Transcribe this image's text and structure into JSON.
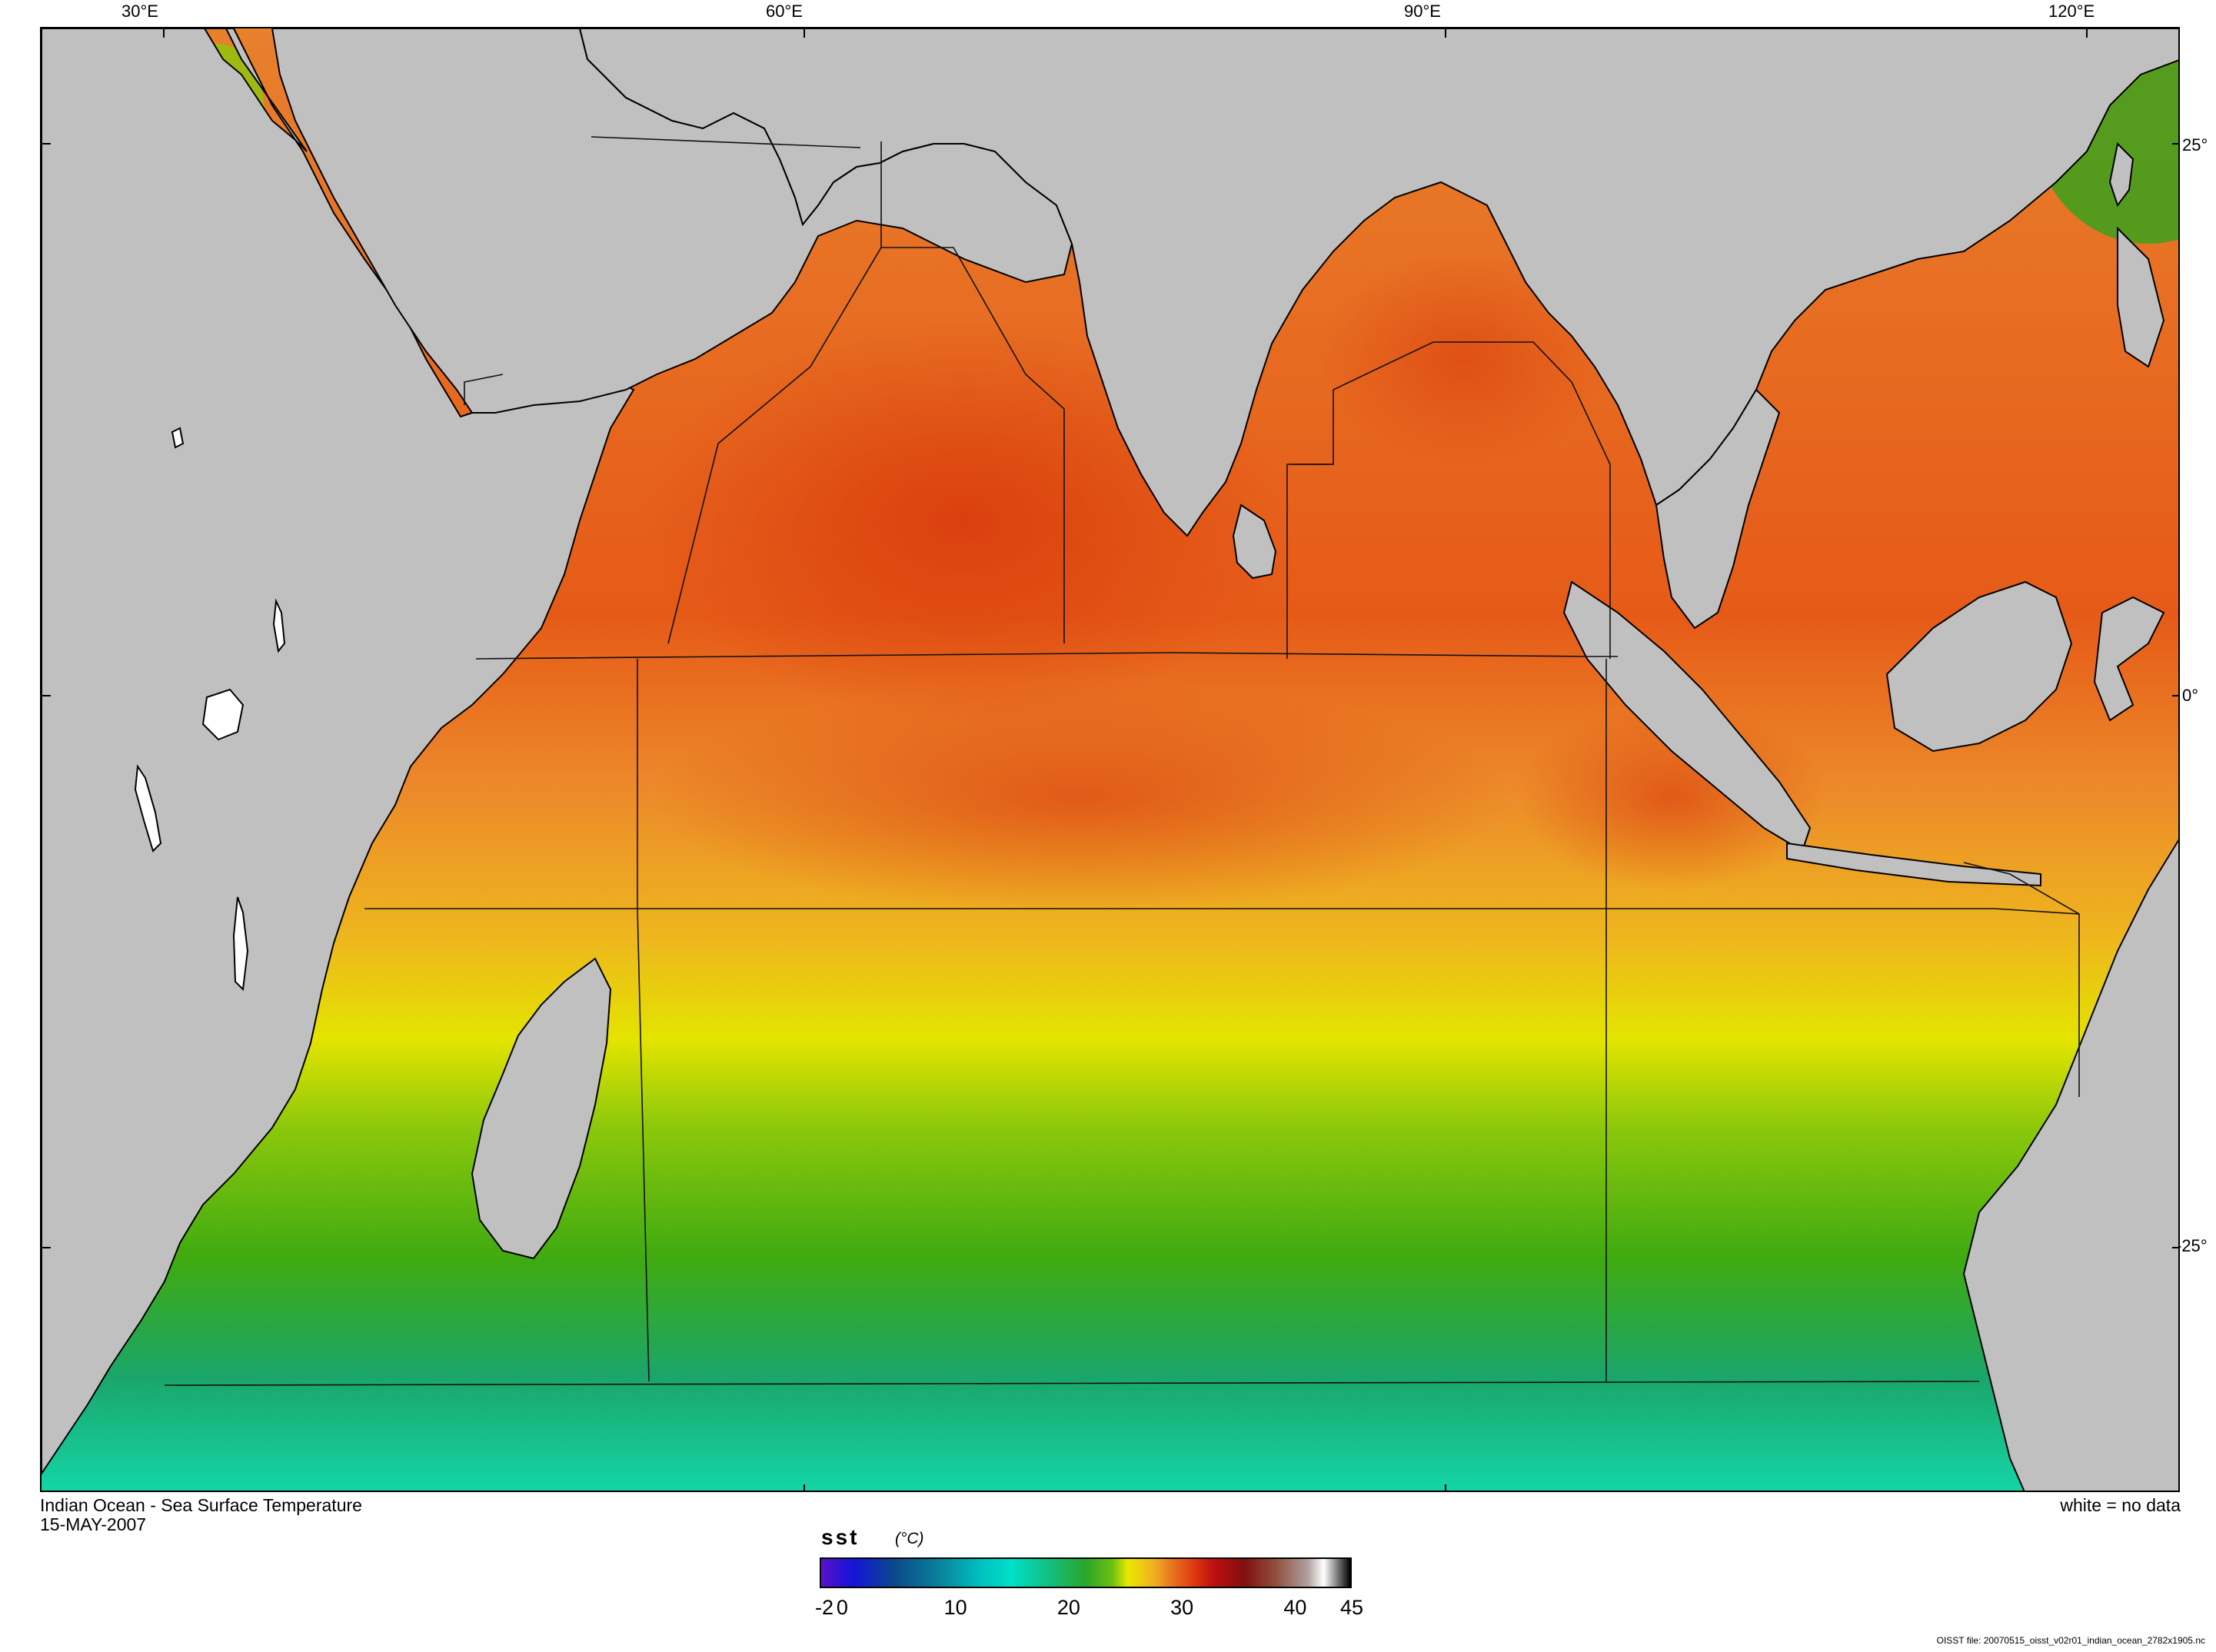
{
  "map": {
    "longitude_labels": [
      "30°E",
      "60°E",
      "90°E",
      "120°E"
    ],
    "latitude_labels": [
      "25°",
      "0°",
      "-25°"
    ],
    "caption_title": "Indian Ocean - Sea Surface Temperature",
    "caption_date": "15-MAY-2007",
    "no_data_note": "white = no data",
    "file_note": "OISST file: 20070515_oisst_v02r01_indian_ocean_2782x1905.nc",
    "colors": {
      "land": "#c0c0c0",
      "warm_ocean": "#e8762a",
      "hot_ocean": "#dc4a12",
      "yellow_band": "#e8e800",
      "green_band": "#4caf10",
      "teal_band": "#1fb98a",
      "cool_ocean": "#10d7a6",
      "no_data": "#ffffff"
    }
  },
  "legend": {
    "variable": "sst",
    "units": "(°C)",
    "ticks": [
      "-2",
      "0",
      "10",
      "20",
      "30",
      "40",
      "45"
    ],
    "range": [
      -2,
      45
    ]
  }
}
